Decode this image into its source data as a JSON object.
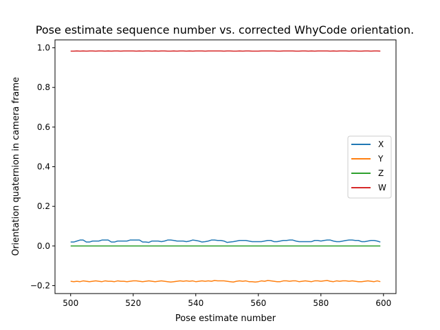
{
  "chart_data": {
    "type": "line",
    "title": "Pose estimate sequence number vs. corrected WhyCode orientation.",
    "xlabel": "Pose estimate number",
    "ylabel": "Orientation quaternion in camera frame",
    "xlim": [
      495,
      604
    ],
    "ylim": [
      -0.24,
      1.04
    ],
    "xticks": [
      500,
      520,
      540,
      560,
      580,
      600
    ],
    "xtick_labels": [
      "500",
      "520",
      "540",
      "560",
      "580",
      "600"
    ],
    "yticks": [
      -0.2,
      0.0,
      0.2,
      0.4,
      0.6,
      0.8,
      1.0
    ],
    "ytick_labels": [
      "−0.2",
      "0.0",
      "0.2",
      "0.4",
      "0.6",
      "0.8",
      "1.0"
    ],
    "grid": false,
    "legend_position": "center-right",
    "x": [
      500,
      501,
      502,
      503,
      504,
      505,
      506,
      507,
      508,
      509,
      510,
      511,
      512,
      513,
      514,
      515,
      516,
      517,
      518,
      519,
      520,
      521,
      522,
      523,
      524,
      525,
      526,
      527,
      528,
      529,
      530,
      531,
      532,
      533,
      534,
      535,
      536,
      537,
      538,
      539,
      540,
      541,
      542,
      543,
      544,
      545,
      546,
      547,
      548,
      549,
      550,
      551,
      552,
      553,
      554,
      555,
      556,
      557,
      558,
      559,
      560,
      561,
      562,
      563,
      564,
      565,
      566,
      567,
      568,
      569,
      570,
      571,
      572,
      573,
      574,
      575,
      576,
      577,
      578,
      579,
      580,
      581,
      582,
      583,
      584,
      585,
      586,
      587,
      588,
      589,
      590,
      591,
      592,
      593,
      594,
      595,
      596,
      597,
      598,
      599
    ],
    "series": [
      {
        "name": "X",
        "color": "#1f77b4",
        "values": [
          0.02,
          0.02,
          0.025,
          0.03,
          0.03,
          0.02,
          0.02,
          0.025,
          0.025,
          0.025,
          0.03,
          0.03,
          0.03,
          0.02,
          0.02,
          0.025,
          0.025,
          0.025,
          0.025,
          0.03,
          0.03,
          0.03,
          0.03,
          0.02,
          0.02,
          0.018,
          0.025,
          0.025,
          0.025,
          0.022,
          0.025,
          0.03,
          0.03,
          0.028,
          0.025,
          0.025,
          0.025,
          0.022,
          0.025,
          0.03,
          0.028,
          0.025,
          0.02,
          0.022,
          0.025,
          0.03,
          0.03,
          0.028,
          0.028,
          0.025,
          0.018,
          0.02,
          0.022,
          0.025,
          0.028,
          0.028,
          0.028,
          0.025,
          0.022,
          0.022,
          0.022,
          0.022,
          0.025,
          0.028,
          0.028,
          0.022,
          0.022,
          0.025,
          0.028,
          0.028,
          0.03,
          0.03,
          0.025,
          0.022,
          0.022,
          0.022,
          0.022,
          0.022,
          0.028,
          0.028,
          0.025,
          0.028,
          0.03,
          0.03,
          0.025,
          0.022,
          0.022,
          0.025,
          0.028,
          0.03,
          0.03,
          0.028,
          0.028,
          0.022,
          0.022,
          0.025,
          0.028,
          0.028,
          0.025,
          0.02
        ]
      },
      {
        "name": "Y",
        "color": "#ff7f0e",
        "values": [
          -0.178,
          -0.18,
          -0.178,
          -0.18,
          -0.176,
          -0.178,
          -0.18,
          -0.178,
          -0.176,
          -0.178,
          -0.18,
          -0.176,
          -0.178,
          -0.178,
          -0.18,
          -0.176,
          -0.178,
          -0.178,
          -0.18,
          -0.178,
          -0.176,
          -0.176,
          -0.178,
          -0.18,
          -0.178,
          -0.176,
          -0.178,
          -0.18,
          -0.178,
          -0.176,
          -0.178,
          -0.18,
          -0.182,
          -0.18,
          -0.178,
          -0.176,
          -0.178,
          -0.176,
          -0.178,
          -0.176,
          -0.18,
          -0.178,
          -0.176,
          -0.178,
          -0.176,
          -0.178,
          -0.174,
          -0.176,
          -0.176,
          -0.176,
          -0.178,
          -0.18,
          -0.182,
          -0.178,
          -0.176,
          -0.178,
          -0.176,
          -0.18,
          -0.18,
          -0.182,
          -0.18,
          -0.176,
          -0.178,
          -0.174,
          -0.176,
          -0.178,
          -0.18,
          -0.18,
          -0.176,
          -0.176,
          -0.178,
          -0.176,
          -0.176,
          -0.18,
          -0.178,
          -0.176,
          -0.178,
          -0.18,
          -0.176,
          -0.176,
          -0.178,
          -0.176,
          -0.174,
          -0.178,
          -0.18,
          -0.176,
          -0.178,
          -0.176,
          -0.176,
          -0.178,
          -0.176,
          -0.178,
          -0.18,
          -0.18,
          -0.178,
          -0.176,
          -0.178,
          -0.18,
          -0.176,
          -0.18
        ]
      },
      {
        "name": "Z",
        "color": "#2ca02c",
        "values": [
          0,
          0,
          0,
          0,
          0,
          0,
          0,
          0,
          0,
          0,
          0,
          0,
          0,
          0,
          0,
          0,
          0,
          0,
          0,
          0,
          0,
          0,
          0,
          0,
          0,
          0,
          0,
          0,
          0,
          0,
          0,
          0,
          0,
          0,
          0,
          0,
          0,
          0,
          0,
          0,
          0,
          0,
          0,
          0,
          0,
          0,
          0,
          0,
          0,
          0,
          0,
          0,
          0,
          0,
          0,
          0,
          0,
          0,
          0,
          0,
          0,
          0,
          0,
          0,
          0,
          0,
          0,
          0,
          0,
          0,
          0,
          0,
          0,
          0,
          0,
          0,
          0,
          0,
          0,
          0,
          0,
          0,
          0,
          0,
          0,
          0,
          0,
          0,
          0,
          0,
          0,
          0,
          0,
          0,
          0,
          0,
          0,
          0,
          0,
          0
        ]
      },
      {
        "name": "W",
        "color": "#d62728",
        "values": [
          0.983,
          0.983,
          0.984,
          0.983,
          0.984,
          0.983,
          0.984,
          0.984,
          0.983,
          0.984,
          0.984,
          0.983,
          0.984,
          0.983,
          0.984,
          0.984,
          0.983,
          0.984,
          0.984,
          0.984,
          0.984,
          0.983,
          0.984,
          0.983,
          0.984,
          0.984,
          0.983,
          0.984,
          0.983,
          0.984,
          0.984,
          0.983,
          0.983,
          0.984,
          0.983,
          0.984,
          0.984,
          0.983,
          0.984,
          0.983,
          0.984,
          0.984,
          0.984,
          0.983,
          0.984,
          0.984,
          0.984,
          0.984,
          0.984,
          0.983,
          0.984,
          0.984,
          0.983,
          0.983,
          0.984,
          0.983,
          0.984,
          0.984,
          0.983,
          0.983,
          0.983,
          0.984,
          0.984,
          0.984,
          0.984,
          0.984,
          0.983,
          0.983,
          0.984,
          0.984,
          0.984,
          0.984,
          0.983,
          0.983,
          0.984,
          0.984,
          0.983,
          0.984,
          0.983,
          0.984,
          0.984,
          0.984,
          0.984,
          0.983,
          0.984,
          0.983,
          0.984,
          0.984,
          0.984,
          0.983,
          0.984,
          0.984,
          0.983,
          0.983,
          0.984,
          0.984,
          0.983,
          0.984,
          0.984,
          0.983
        ]
      }
    ]
  }
}
